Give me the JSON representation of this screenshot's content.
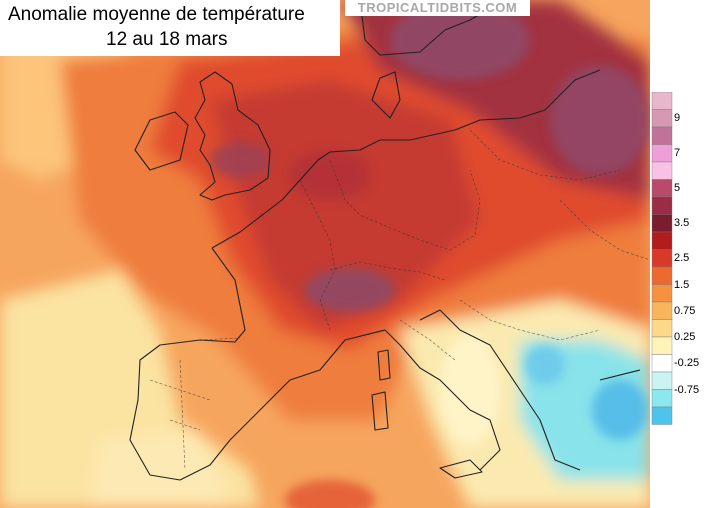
{
  "title": {
    "line1": "Anomalie moyenne de température",
    "line2": "12 au 18 mars"
  },
  "watermark": "TROPICALTIDBITS.COM",
  "legend": {
    "swatches": [
      {
        "color": "#e8b7cc"
      },
      {
        "color": "#d798b4"
      },
      {
        "color": "#c27298"
      },
      {
        "color": "#ee9fd8"
      },
      {
        "color": "#f9c1e6"
      },
      {
        "color": "#b84a6a"
      },
      {
        "color": "#9c2b45"
      },
      {
        "color": "#7a1e2f"
      },
      {
        "color": "#b31c1c"
      },
      {
        "color": "#d83a2a"
      },
      {
        "color": "#ec6a30"
      },
      {
        "color": "#f5913f"
      },
      {
        "color": "#f9b55b"
      },
      {
        "color": "#fcd88a"
      },
      {
        "color": "#fff4b8"
      },
      {
        "color": "#ffffff"
      },
      {
        "color": "#c9f4f2"
      },
      {
        "color": "#8ae8ee"
      },
      {
        "color": "#4fc3ea"
      }
    ],
    "labels": [
      "9",
      "7",
      "5",
      "3.5",
      "2.5",
      "1.5",
      "0.75",
      "0.25",
      "-0.25",
      "-0.75"
    ]
  },
  "colors": {
    "sea_positive": "#f5a15a",
    "pale": "#fbe3a2",
    "orange": "#ef7d3c",
    "red": "#e04c2e",
    "crimson": "#c53a30",
    "dark_red": "#a33340",
    "purple": "#8e4a6a",
    "cyan": "#89e3ea",
    "blue": "#51b9e8",
    "border": "#222222"
  }
}
